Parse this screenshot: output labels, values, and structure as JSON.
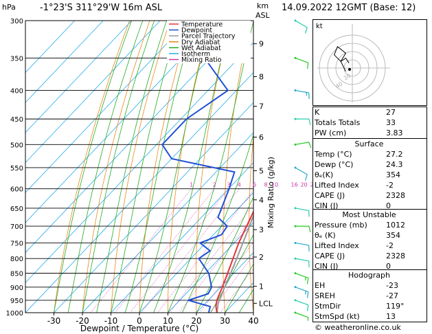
{
  "header": {
    "hpa_label": "hPa",
    "location": "-1°23'S 311°29'W 16m ASL",
    "km_label": "km",
    "asl_label": "ASL",
    "datetime": "14.09.2022 12GMT (Base: 12)",
    "credit": "© weatheronline.co.uk"
  },
  "chart_data": {
    "type": "skew-t",
    "xlabel": "Dewpoint / Temperature (°C)",
    "ylabel_right": "Mixing Ratio (g/kg)",
    "x_ticks": [
      -30,
      -20,
      -10,
      0,
      10,
      20,
      30,
      40
    ],
    "pressure_levels": [
      300,
      350,
      400,
      450,
      500,
      550,
      600,
      650,
      700,
      750,
      800,
      850,
      900,
      950,
      1000
    ],
    "km_ticks": [
      {
        "label": "9",
        "p": 330
      },
      {
        "label": "8",
        "p": 378
      },
      {
        "label": "7",
        "p": 427
      },
      {
        "label": "6",
        "p": 485
      },
      {
        "label": "5",
        "p": 557
      },
      {
        "label": "4",
        "p": 628
      },
      {
        "label": "3",
        "p": 710
      },
      {
        "label": "2",
        "p": 795
      },
      {
        "label": "1",
        "p": 897
      },
      {
        "label": "LCL",
        "p": 962
      }
    ],
    "mixing_ratio_labels": [
      "1",
      "2",
      "3",
      "4",
      "6",
      "8",
      "10",
      "16",
      "20",
      "25"
    ],
    "mixing_ratio_values": [
      1,
      2,
      3,
      4,
      6,
      8,
      10,
      16,
      20,
      25
    ],
    "legend": [
      {
        "name": "Temperature",
        "color": "#e8303a"
      },
      {
        "name": "Dewpoint",
        "color": "#1f4fd6"
      },
      {
        "name": "Parcel Trajectory",
        "color": "#999999"
      },
      {
        "name": "Dry Adiabat",
        "color": "#e8881a"
      },
      {
        "name": "Wet Adiabat",
        "color": "#22aa22"
      },
      {
        "name": "Isotherm",
        "color": "#22aaee"
      },
      {
        "name": "Mixing Ratio",
        "color": "#cc33aa"
      }
    ],
    "temperature": [
      [
        1000,
        27.2
      ],
      [
        975,
        24.8
      ],
      [
        950,
        23.0
      ],
      [
        925,
        21.8
      ],
      [
        900,
        20.6
      ],
      [
        875,
        19.2
      ],
      [
        850,
        17.8
      ],
      [
        800,
        14.8
      ],
      [
        750,
        11.6
      ],
      [
        700,
        8.8
      ],
      [
        650,
        5.8
      ],
      [
        600,
        2.4
      ],
      [
        550,
        -1.6
      ],
      [
        500,
        -5.6
      ],
      [
        450,
        -10.8
      ],
      [
        400,
        -16.8
      ],
      [
        350,
        -24.4
      ],
      [
        300,
        -33.0
      ]
    ],
    "dewpoint": [
      [
        1000,
        24.3
      ],
      [
        975,
        22.8
      ],
      [
        950,
        13.0
      ],
      [
        925,
        17.8
      ],
      [
        900,
        16.8
      ],
      [
        850,
        11.2
      ],
      [
        800,
        2.8
      ],
      [
        775,
        4.2
      ],
      [
        750,
        -2.0
      ],
      [
        725,
        2.8
      ],
      [
        700,
        2.0
      ],
      [
        675,
        -4.2
      ],
      [
        650,
        -6.0
      ],
      [
        600,
        -9.8
      ],
      [
        560,
        -13.5
      ],
      [
        530,
        -40.0
      ],
      [
        500,
        -48.0
      ],
      [
        450,
        -48.0
      ],
      [
        400,
        -43.0
      ],
      [
        350,
        -62.0
      ],
      [
        320,
        -66.0
      ],
      [
        300,
        -65.0
      ]
    ],
    "parcel": [
      [
        1000,
        27.2
      ],
      [
        962,
        24.5
      ],
      [
        900,
        21.4
      ],
      [
        850,
        18.9
      ],
      [
        800,
        16.1
      ],
      [
        700,
        9.8
      ],
      [
        600,
        2.3
      ],
      [
        500,
        -6.6
      ],
      [
        400,
        -17.8
      ],
      [
        300,
        -32.0
      ]
    ],
    "wind_barbs": [
      {
        "p": 1000,
        "dir": 110,
        "kt": 5
      },
      {
        "p": 950,
        "dir": 110,
        "kt": 10
      },
      {
        "p": 900,
        "dir": 110,
        "kt": 15
      },
      {
        "p": 850,
        "dir": 110,
        "kt": 15
      },
      {
        "p": 800,
        "dir": 100,
        "kt": 10
      },
      {
        "p": 750,
        "dir": 100,
        "kt": 10
      },
      {
        "p": 700,
        "dir": 90,
        "kt": 10
      },
      {
        "p": 650,
        "dir": 100,
        "kt": 10
      },
      {
        "p": 550,
        "dir": 120,
        "kt": 10
      },
      {
        "p": 500,
        "dir": 80,
        "kt": 10
      },
      {
        "p": 450,
        "dir": 90,
        "kt": 10
      },
      {
        "p": 400,
        "dir": 100,
        "kt": 15
      },
      {
        "p": 350,
        "dir": 110,
        "kt": 10
      },
      {
        "p": 300,
        "dir": 120,
        "kt": 10
      }
    ],
    "wind_barb_colors": [
      "#22cc22",
      "#22ccaa",
      "#22aacc"
    ],
    "hodograph": {
      "label": "kt",
      "ring_labels": [
        "20",
        "40"
      ],
      "points": [
        [
          -4,
          2
        ],
        [
          -7,
          -4
        ],
        [
          -11,
          -8
        ],
        [
          -9,
          -13
        ],
        [
          -4,
          -9
        ],
        [
          -7,
          -4
        ],
        [
          -4,
          -6
        ],
        [
          -2,
          -3
        ]
      ]
    }
  },
  "indices": {
    "top": [
      {
        "label": "K",
        "value": "27"
      },
      {
        "label": "Totals Totals",
        "value": "33"
      },
      {
        "label": "PW (cm)",
        "value": "3.83"
      }
    ],
    "surface": {
      "title": "Surface",
      "rows": [
        {
          "label": "Temp (°C)",
          "value": "27.2"
        },
        {
          "label": "Dewp (°C)",
          "value": "24.3"
        },
        {
          "label": "θₑ(K)",
          "value": "354"
        },
        {
          "label": "Lifted Index",
          "value": "-2"
        },
        {
          "label": "CAPE (J)",
          "value": "2328"
        },
        {
          "label": "CIN (J)",
          "value": "0"
        }
      ]
    },
    "most_unstable": {
      "title": "Most Unstable",
      "rows": [
        {
          "label": "Pressure (mb)",
          "value": "1012"
        },
        {
          "label": "θₑ (K)",
          "value": "354"
        },
        {
          "label": "Lifted Index",
          "value": "-2"
        },
        {
          "label": "CAPE (J)",
          "value": "2328"
        },
        {
          "label": "CIN (J)",
          "value": "0"
        }
      ]
    },
    "hodograph": {
      "title": "Hodograph",
      "rows": [
        {
          "label": "EH",
          "value": "-23"
        },
        {
          "label": "SREH",
          "value": "-27"
        },
        {
          "label": "StmDir",
          "value": "119°"
        },
        {
          "label": "StmSpd (kt)",
          "value": "13"
        }
      ]
    }
  }
}
